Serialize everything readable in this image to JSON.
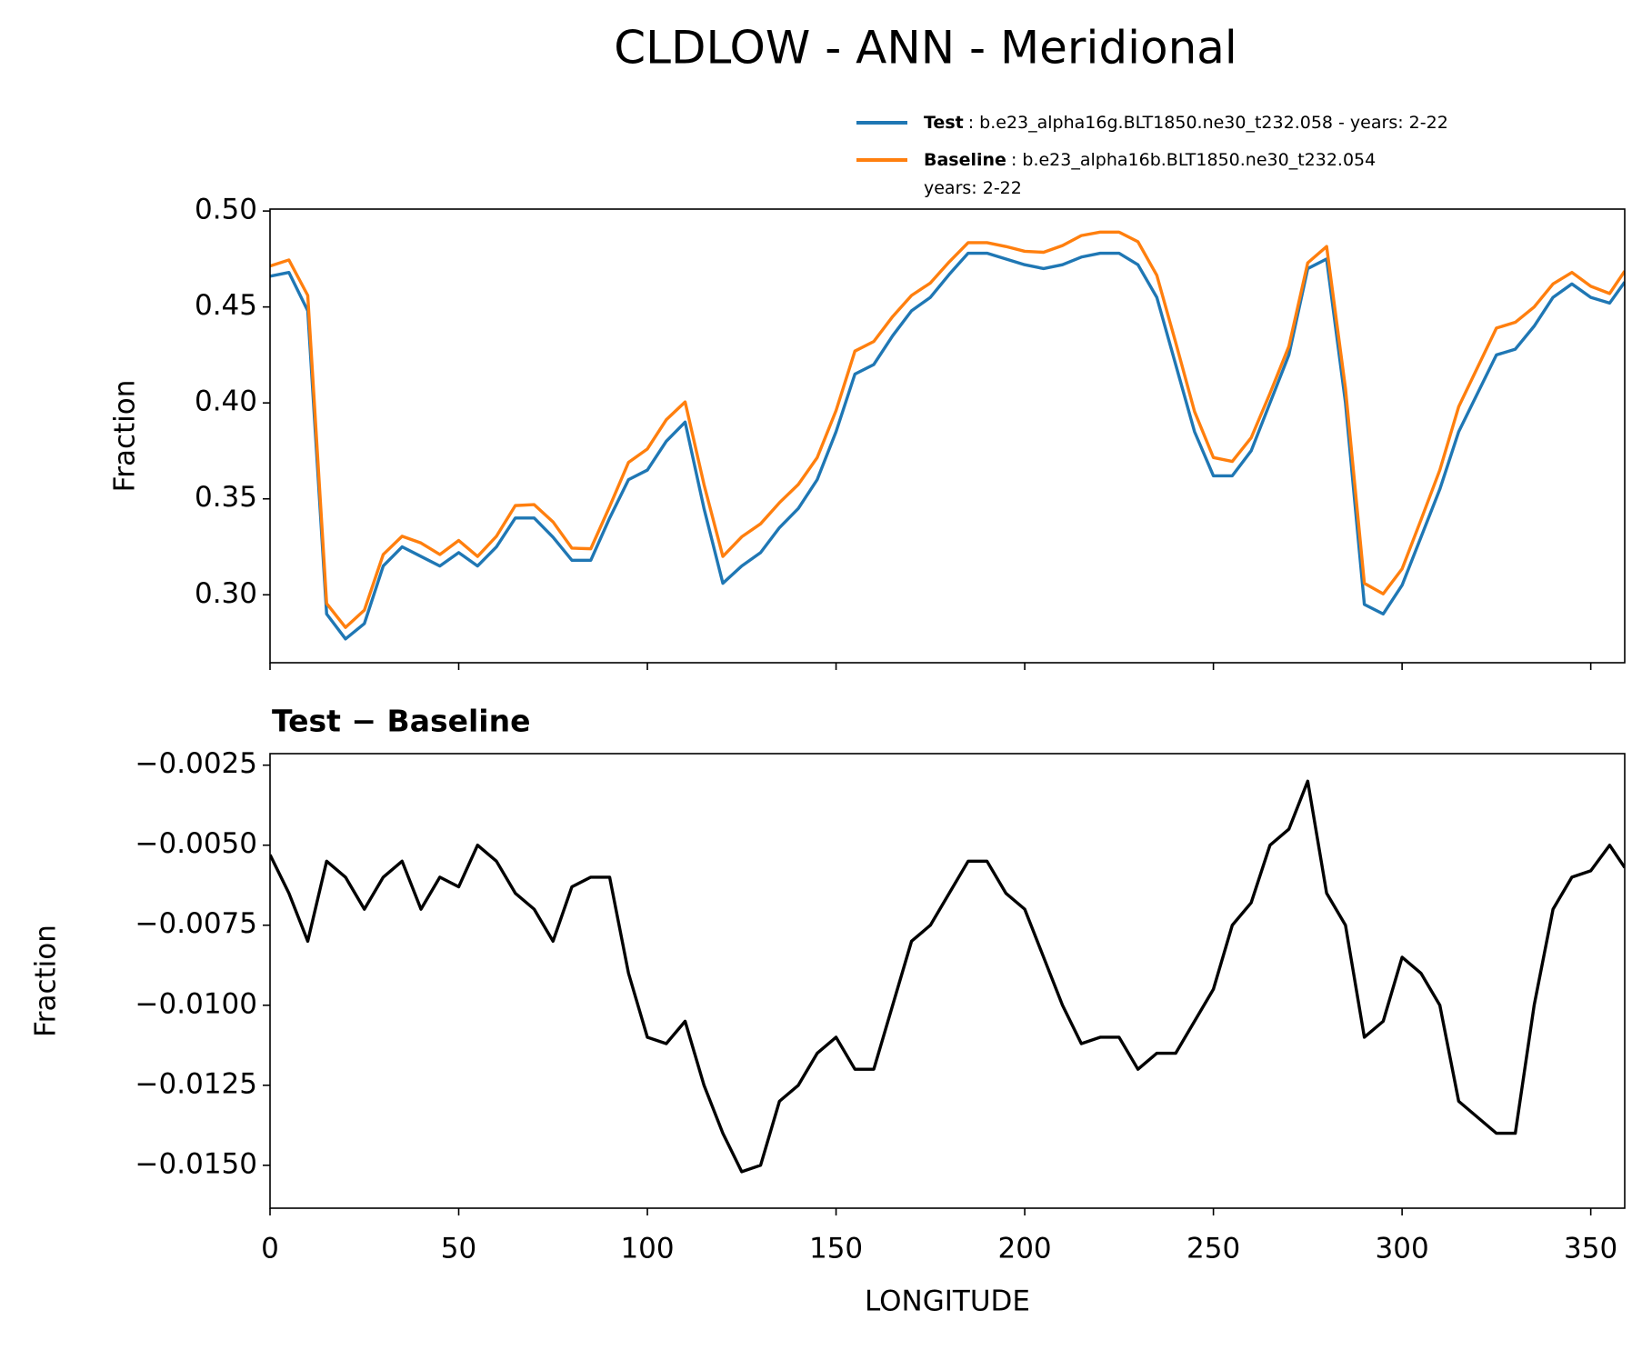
{
  "title": "CLDLOW - ANN - Meridional",
  "chart_data": [
    {
      "type": "line",
      "ylabel": "Fraction",
      "x": [
        0,
        5,
        10,
        15,
        20,
        25,
        30,
        35,
        40,
        45,
        50,
        55,
        60,
        65,
        70,
        75,
        80,
        85,
        90,
        95,
        100,
        105,
        110,
        115,
        120,
        125,
        130,
        135,
        140,
        145,
        150,
        155,
        160,
        165,
        170,
        175,
        180,
        185,
        190,
        195,
        200,
        205,
        210,
        215,
        220,
        225,
        230,
        235,
        240,
        245,
        250,
        255,
        260,
        265,
        270,
        275,
        280,
        285,
        290,
        295,
        300,
        305,
        310,
        315,
        320,
        325,
        330,
        335,
        340,
        345,
        350,
        355,
        359
      ],
      "series": [
        {
          "name": "Test",
          "description": [
            ": b.e23_alpha16g.BLT1850.ne30_t232.058 - years: 2-22"
          ],
          "color": "#1f77b4",
          "values": [
            0.466,
            0.468,
            0.448,
            0.29,
            0.277,
            0.285,
            0.315,
            0.325,
            0.32,
            0.315,
            0.322,
            0.315,
            0.325,
            0.34,
            0.34,
            0.33,
            0.318,
            0.318,
            0.34,
            0.36,
            0.365,
            0.38,
            0.39,
            0.345,
            0.306,
            0.315,
            0.322,
            0.335,
            0.345,
            0.36,
            0.385,
            0.415,
            0.42,
            0.435,
            0.448,
            0.455,
            0.467,
            0.478,
            0.478,
            0.475,
            0.472,
            0.47,
            0.472,
            0.476,
            0.478,
            0.478,
            0.472,
            0.455,
            0.42,
            0.385,
            0.362,
            0.362,
            0.375,
            0.4,
            0.425,
            0.47,
            0.475,
            0.4,
            0.295,
            0.29,
            0.305,
            0.33,
            0.355,
            0.385,
            0.405,
            0.425,
            0.428,
            0.44,
            0.455,
            0.462,
            0.455,
            0.452,
            0.463
          ]
        },
        {
          "name": "Baseline",
          "description": [
            ": b.e23_alpha16b.BLT1850.ne30_t232.054",
            "years: 2-22"
          ],
          "color": "#ff7f0e",
          "values": [
            0.4713,
            0.4745,
            0.456,
            0.2955,
            0.283,
            0.292,
            0.321,
            0.3305,
            0.327,
            0.321,
            0.3283,
            0.32,
            0.3305,
            0.3465,
            0.347,
            0.338,
            0.3243,
            0.324,
            0.346,
            0.369,
            0.376,
            0.3912,
            0.4005,
            0.3575,
            0.32,
            0.3302,
            0.337,
            0.348,
            0.3575,
            0.3715,
            0.396,
            0.427,
            0.432,
            0.445,
            0.456,
            0.4625,
            0.4735,
            0.4835,
            0.4835,
            0.4815,
            0.479,
            0.4785,
            0.482,
            0.4872,
            0.489,
            0.489,
            0.484,
            0.4665,
            0.4315,
            0.3955,
            0.3715,
            0.3695,
            0.3818,
            0.405,
            0.4295,
            0.473,
            0.4815,
            0.4075,
            0.306,
            0.3005,
            0.3135,
            0.339,
            0.365,
            0.398,
            0.4185,
            0.439,
            0.442,
            0.45,
            0.462,
            0.468,
            0.4608,
            0.457,
            0.4687
          ]
        }
      ],
      "xlim": [
        0,
        359
      ],
      "xticks": [
        0,
        50,
        100,
        150,
        200,
        250,
        300,
        350
      ],
      "xtick_labels": false,
      "ylim": [
        0.2646,
        0.501
      ],
      "yticks": [
        {
          "value": 0.3,
          "label": "0.30"
        },
        0.35,
        {
          "value": 0.4,
          "label": "0.40"
        },
        0.45,
        {
          "value": 0.5,
          "label": "0.50"
        }
      ],
      "legend": "upper right"
    },
    {
      "type": "line",
      "title": "Test − Baseline",
      "xlabel": "LONGITUDE",
      "ylabel": "Fraction",
      "x": [
        0,
        5,
        10,
        15,
        20,
        25,
        30,
        35,
        40,
        45,
        50,
        55,
        60,
        65,
        70,
        75,
        80,
        85,
        90,
        95,
        100,
        105,
        110,
        115,
        120,
        125,
        130,
        135,
        140,
        145,
        150,
        155,
        160,
        165,
        170,
        175,
        180,
        185,
        190,
        195,
        200,
        205,
        210,
        215,
        220,
        225,
        230,
        235,
        240,
        245,
        250,
        255,
        260,
        265,
        270,
        275,
        280,
        285,
        290,
        295,
        300,
        305,
        310,
        315,
        320,
        325,
        330,
        335,
        340,
        345,
        350,
        355,
        359
      ],
      "color": "#000000",
      "values": [
        -0.0053,
        -0.0065,
        -0.008,
        -0.0055,
        -0.006,
        -0.007,
        -0.006,
        -0.0055,
        -0.007,
        -0.006,
        -0.0063,
        -0.005,
        -0.0055,
        -0.0065,
        -0.007,
        -0.008,
        -0.0063,
        -0.006,
        -0.006,
        -0.009,
        -0.011,
        -0.0112,
        -0.0105,
        -0.0125,
        -0.014,
        -0.0152,
        -0.015,
        -0.013,
        -0.0125,
        -0.0115,
        -0.011,
        -0.012,
        -0.012,
        -0.01,
        -0.008,
        -0.0075,
        -0.0065,
        -0.0055,
        -0.0055,
        -0.0065,
        -0.007,
        -0.0085,
        -0.01,
        -0.0112,
        -0.011,
        -0.011,
        -0.012,
        -0.0115,
        -0.0115,
        -0.0105,
        -0.0095,
        -0.0075,
        -0.0068,
        -0.005,
        -0.0045,
        -0.003,
        -0.0065,
        -0.0075,
        -0.011,
        -0.0105,
        -0.0085,
        -0.009,
        -0.01,
        -0.013,
        -0.0135,
        -0.014,
        -0.014,
        -0.01,
        -0.007,
        -0.006,
        -0.0058,
        -0.005,
        -0.0057
      ],
      "xlim": [
        0,
        359
      ],
      "xticks": [
        0,
        50,
        100,
        150,
        200,
        250,
        300,
        350
      ],
      "ylim": [
        -0.01634,
        -0.00214
      ],
      "yticks": [
        {
          "value": -0.0025,
          "label": "−0.0025"
        },
        {
          "value": -0.005,
          "label": "−0.0050"
        },
        {
          "value": -0.0075,
          "label": "−0.0075"
        },
        {
          "value": -0.01,
          "label": "−0.0100"
        },
        {
          "value": -0.0125,
          "label": "−0.0125"
        },
        {
          "value": -0.015,
          "label": "−0.0150"
        }
      ]
    }
  ]
}
